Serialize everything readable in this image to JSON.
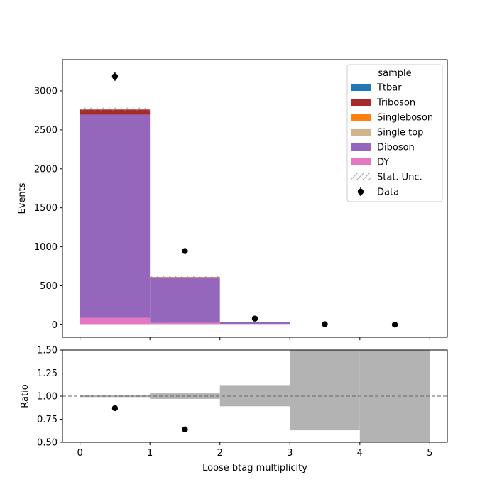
{
  "chart_data": [
    {
      "type": "bar",
      "panel": "main",
      "stacked": true,
      "bin_edges": [
        0,
        1,
        2,
        3,
        4,
        5
      ],
      "ylabel": "Events",
      "xlim": [
        -0.25,
        5.25
      ],
      "ylim": [
        -160,
        3400
      ],
      "yticks": [
        0,
        500,
        1000,
        1500,
        2000,
        2500,
        3000
      ],
      "legend": {
        "title": "sample",
        "placement": "upper right",
        "entries": [
          "Ttbar",
          "Triboson",
          "Singleboson",
          "Single top",
          "Diboson",
          "DY",
          "Stat. Unc.",
          "Data"
        ]
      },
      "series": [
        {
          "name": "DY",
          "color": "#e377c2",
          "values": [
            90,
            25,
            3,
            0,
            0
          ]
        },
        {
          "name": "Diboson",
          "color": "#9467bd",
          "values": [
            2605,
            570,
            30,
            0,
            0
          ]
        },
        {
          "name": "Single top",
          "color": "#d2b48c",
          "values": [
            0,
            0,
            0,
            0,
            0
          ]
        },
        {
          "name": "Singleboson",
          "color": "#ff7f0e",
          "values": [
            0,
            0,
            0,
            0,
            0
          ]
        },
        {
          "name": "Triboson",
          "color": "#a52a2a",
          "values": [
            65,
            15,
            0,
            0,
            0
          ]
        },
        {
          "name": "Ttbar",
          "color": "#1f77b4",
          "values": [
            0,
            0,
            0,
            0,
            0
          ]
        }
      ],
      "stat_unc": [
        25,
        12,
        3,
        0,
        0
      ],
      "data": {
        "name": "Data",
        "x": [
          0.5,
          1.5,
          2.5,
          3.5,
          4.5
        ],
        "y": [
          3185,
          945,
          80,
          8,
          2
        ],
        "yerr": [
          56,
          31,
          9,
          3,
          1.4
        ]
      }
    },
    {
      "type": "bar",
      "panel": "ratio",
      "xlabel": "Loose btag multiplicity",
      "ylabel": "Ratio",
      "xlim": [
        -0.25,
        5.25
      ],
      "ylim": [
        0.5,
        1.5
      ],
      "xticks": [
        0,
        1,
        2,
        3,
        4,
        5
      ],
      "yticks": [
        0.5,
        0.75,
        1.0,
        1.25,
        1.5
      ],
      "reference_line": 1.0,
      "unc_band": {
        "bin_edges": [
          0,
          1,
          2,
          3,
          4,
          5
        ],
        "low": [
          0.99,
          0.97,
          0.89,
          0.63,
          0.5
        ],
        "high": [
          1.01,
          1.03,
          1.12,
          1.5,
          1.5
        ]
      },
      "data": {
        "x": [
          0.5,
          1.5
        ],
        "y": [
          0.87,
          0.64
        ]
      }
    }
  ]
}
